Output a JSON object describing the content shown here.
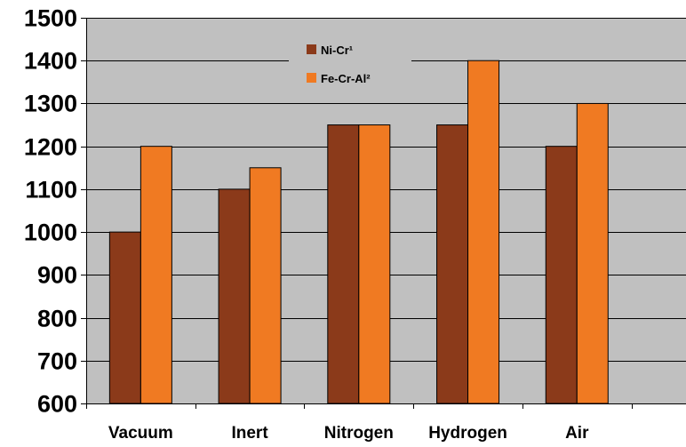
{
  "chart_data": {
    "type": "bar",
    "title": "",
    "xlabel": "",
    "ylabel": "",
    "categories": [
      "Vacuum",
      "Inert",
      "Nitrogen",
      "Hydrogen",
      "Air"
    ],
    "series": [
      {
        "name": "Ni-Cr¹",
        "color": "#8B3A1A",
        "values": [
          1000,
          1100,
          1250,
          1250,
          1200
        ]
      },
      {
        "name": "Fe-Cr-Al²",
        "color": "#F07A22",
        "values": [
          1200,
          1150,
          1250,
          1400,
          1300
        ]
      }
    ],
    "ylim": [
      600,
      1500
    ],
    "yticks": [
      600,
      700,
      800,
      900,
      1000,
      1100,
      1200,
      1300,
      1400,
      1500
    ],
    "grid": true,
    "legend_position": "top-center",
    "plot_background": "#C0C0C0",
    "gridline_color": "#000000"
  }
}
